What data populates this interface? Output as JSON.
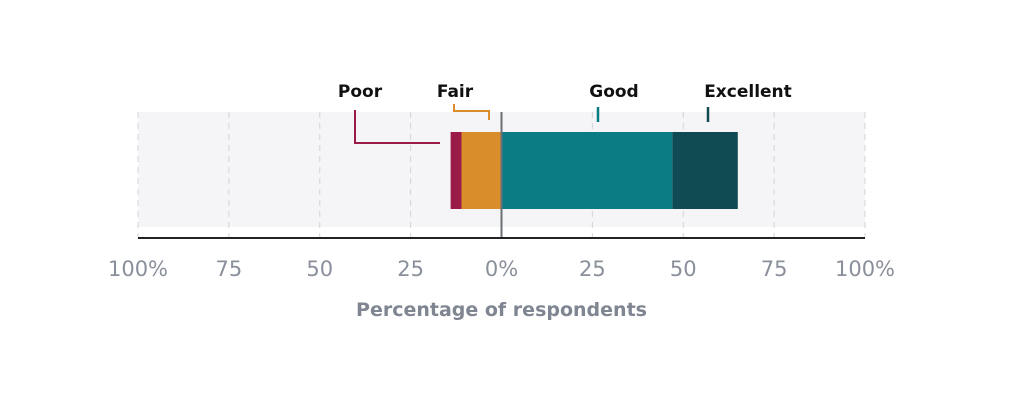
{
  "chart_data": {
    "type": "bar",
    "orientation": "horizontal",
    "stacked": "diverging",
    "xlabel": "Percentage of respondents",
    "xlim": [
      -100,
      100
    ],
    "x_ticks": [
      -100,
      -75,
      -50,
      -25,
      0,
      25,
      50,
      75,
      100
    ],
    "tick_labels": [
      "100%",
      "75",
      "50",
      "25",
      "0%",
      "25",
      "50",
      "75",
      "100%"
    ],
    "grid": true,
    "legend": "top, callout labels",
    "series": [
      {
        "name": "Poor",
        "start": -14,
        "end": -11,
        "color": "#9b1b48"
      },
      {
        "name": "Fair",
        "start": -11,
        "end": 0,
        "color": "#d98e2b"
      },
      {
        "name": "Good",
        "start": 0,
        "end": 47,
        "color": "#0b7b84"
      },
      {
        "name": "Excellent",
        "start": 47,
        "end": 65,
        "color": "#104a52"
      }
    ]
  }
}
